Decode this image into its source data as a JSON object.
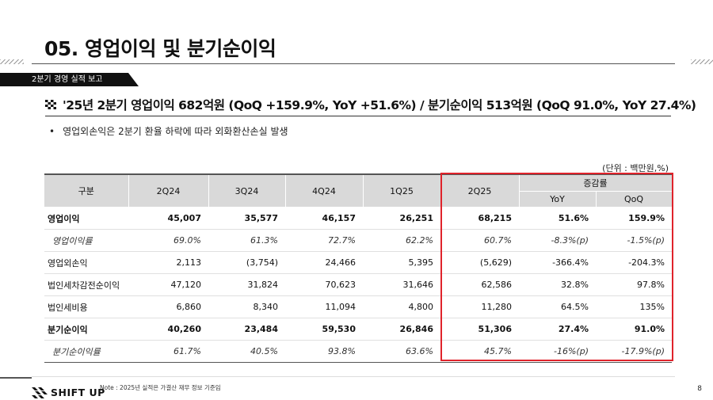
{
  "header": {
    "title": "05. 영업이익 및 분기순이익",
    "section_tag": "2분기 경영 실적 보고",
    "headline": "'25년 2분기 영업이익 682억원 (QoQ +159.9%, YoY +51.6%) / 분기순이익 513억원 (QoQ 91.0%, YoY 27.4%)",
    "headline_icon": "checkered-flag-icon"
  },
  "bullets": [
    {
      "dot": "•",
      "text": "영업외손익은 2분기 환율 하락에 따라 외화환산손실 발생"
    }
  ],
  "table": {
    "unit": "(단위 : 백만원,%)",
    "headers": {
      "category": "구분",
      "periods": [
        "2Q24",
        "3Q24",
        "4Q24",
        "1Q25",
        "2Q25"
      ],
      "change_group": "증감률",
      "change_cols": [
        "YoY",
        "QoQ"
      ]
    },
    "rows": [
      {
        "label": "영업이익",
        "values": [
          "45,007",
          "35,577",
          "46,157",
          "26,251",
          "68,215",
          "51.6%",
          "159.9%"
        ]
      },
      {
        "label": "영업이익률",
        "values": [
          "69.0%",
          "61.3%",
          "72.7%",
          "62.2%",
          "60.7%",
          "-8.3%(p)",
          "-1.5%(p)"
        ]
      },
      {
        "label": "영업외손익",
        "values": [
          "2,113",
          "(3,754)",
          "24,466",
          "5,395",
          "(5,629)",
          "-366.4%",
          "-204.3%"
        ]
      },
      {
        "label": "법인세차감전순이익",
        "values": [
          "47,120",
          "31,824",
          "70,623",
          "31,646",
          "62,586",
          "32.8%",
          "97.8%"
        ]
      },
      {
        "label": "법인세비용",
        "values": [
          "6,860",
          "8,340",
          "11,094",
          "4,800",
          "11,280",
          "64.5%",
          "135%"
        ]
      },
      {
        "label": "분기순이익",
        "values": [
          "40,260",
          "23,484",
          "59,530",
          "26,846",
          "51,306",
          "27.4%",
          "91.0%"
        ]
      },
      {
        "label": "분기순이익률",
        "values": [
          "61.7%",
          "40.5%",
          "93.8%",
          "63.6%",
          "45.7%",
          "-16%(p)",
          "-17.9%(p)"
        ]
      }
    ],
    "highlight_color": "#e0232b"
  },
  "footer": {
    "logo_text": "SHIFT UP",
    "logo_icon": "checkered-logo-icon",
    "note": "Note : 2025년 실적은 가결산 재무 정보 기준임",
    "page_number": "8"
  }
}
